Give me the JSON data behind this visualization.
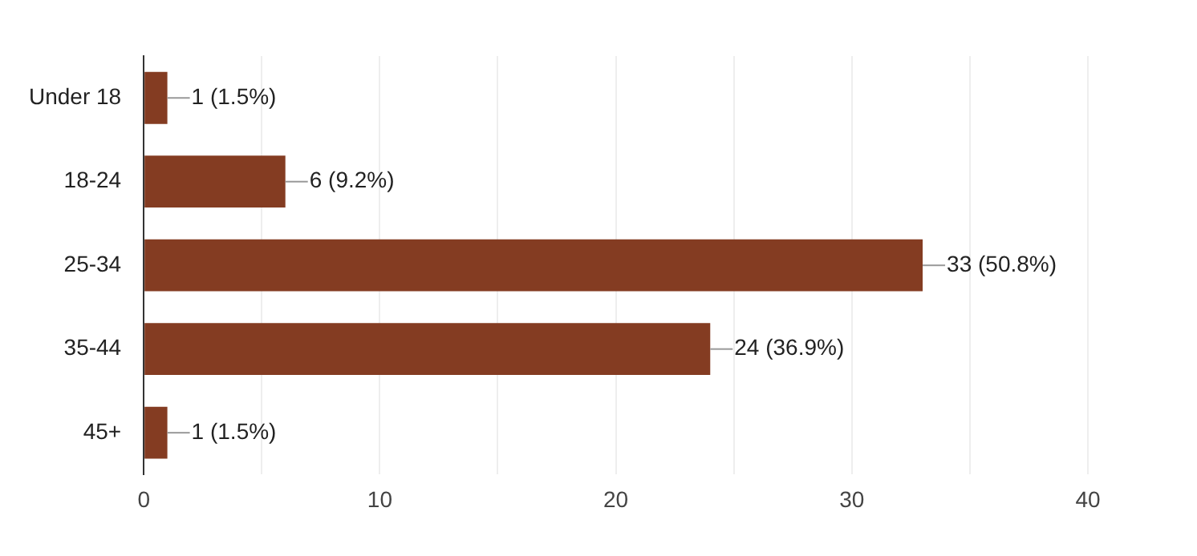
{
  "chart_data": {
    "type": "bar",
    "orientation": "horizontal",
    "categories": [
      "Under 18",
      "18-24",
      "25-34",
      "35-44",
      "45+"
    ],
    "values": [
      1,
      6,
      33,
      24,
      1
    ],
    "color": "#843c22",
    "value_labels": [
      "1 (1.5%)",
      "6 (9.2%)",
      "33 (50.8%)",
      "24 (36.9%)",
      "1 (1.5%)"
    ],
    "xlim": [
      0,
      40
    ],
    "xticks": [
      0,
      {
        "value": 5,
        "label": null
      },
      10,
      {
        "value": 15,
        "label": null
      },
      20,
      {
        "value": 25,
        "label": null
      },
      30,
      {
        "value": 35,
        "label": null
      },
      40
    ],
    "grid": "x",
    "legend": false
  }
}
